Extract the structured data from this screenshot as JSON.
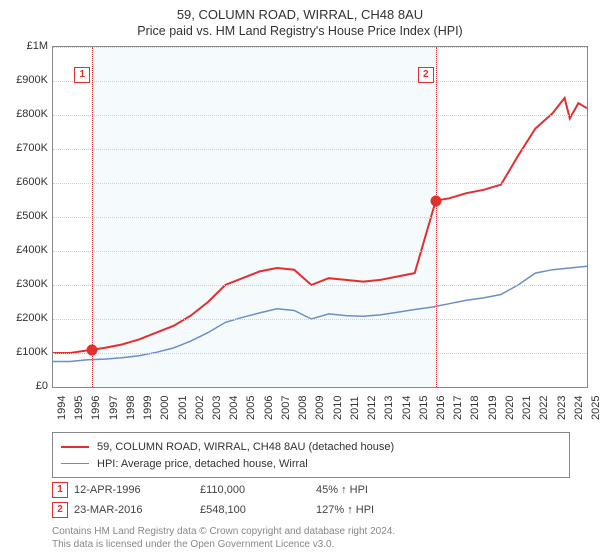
{
  "title": "59, COLUMN ROAD, WIRRAL, CH48 8AU",
  "subtitle": "Price paid vs. HM Land Registry's House Price Index (HPI)",
  "chart": {
    "type": "line",
    "background_color": "#ffffff",
    "shade_color": "#f5fafd",
    "grid_color": "#d0d0d0",
    "x_years": [
      1994,
      1995,
      1996,
      1997,
      1998,
      1999,
      2000,
      2001,
      2002,
      2003,
      2004,
      2005,
      2006,
      2007,
      2008,
      2009,
      2010,
      2011,
      2012,
      2013,
      2014,
      2015,
      2016,
      2017,
      2018,
      2019,
      2020,
      2021,
      2022,
      2023,
      2024,
      2025
    ],
    "y_ticks": [
      0,
      100000,
      200000,
      300000,
      400000,
      500000,
      600000,
      700000,
      800000,
      900000,
      1000000
    ],
    "y_tick_labels": [
      "£0",
      "£100K",
      "£200K",
      "£300K",
      "£400K",
      "£500K",
      "£600K",
      "£700K",
      "£800K",
      "£900K",
      "£1M"
    ],
    "ylim": [
      0,
      1000000
    ],
    "xlim": [
      1994,
      2025
    ],
    "label_fontsize": 11,
    "series": [
      {
        "name": "property",
        "label": "59, COLUMN ROAD, WIRRAL, CH48 8AU (detached house)",
        "color": "#e03030",
        "line_width": 2,
        "data": [
          [
            1994,
            100000
          ],
          [
            1995,
            100000
          ],
          [
            1996.28,
            110000
          ],
          [
            1997,
            115000
          ],
          [
            1998,
            125000
          ],
          [
            1999,
            140000
          ],
          [
            2000,
            160000
          ],
          [
            2001,
            180000
          ],
          [
            2002,
            210000
          ],
          [
            2003,
            250000
          ],
          [
            2004,
            300000
          ],
          [
            2005,
            320000
          ],
          [
            2006,
            340000
          ],
          [
            2007,
            350000
          ],
          [
            2008,
            345000
          ],
          [
            2009,
            300000
          ],
          [
            2010,
            320000
          ],
          [
            2011,
            315000
          ],
          [
            2012,
            310000
          ],
          [
            2013,
            315000
          ],
          [
            2014,
            325000
          ],
          [
            2015,
            335000
          ],
          [
            2016.22,
            548100
          ],
          [
            2017,
            555000
          ],
          [
            2018,
            570000
          ],
          [
            2019,
            580000
          ],
          [
            2020,
            595000
          ],
          [
            2021,
            680000
          ],
          [
            2022,
            760000
          ],
          [
            2023,
            805000
          ],
          [
            2023.7,
            850000
          ],
          [
            2024,
            790000
          ],
          [
            2024.5,
            835000
          ],
          [
            2025,
            820000
          ]
        ]
      },
      {
        "name": "hpi",
        "label": "HPI: Average price, detached house, Wirral",
        "color": "#6a8fc8",
        "line_width": 1.5,
        "data": [
          [
            1994,
            75000
          ],
          [
            1995,
            75000
          ],
          [
            1996,
            80000
          ],
          [
            1997,
            82000
          ],
          [
            1998,
            86000
          ],
          [
            1999,
            92000
          ],
          [
            2000,
            102000
          ],
          [
            2001,
            115000
          ],
          [
            2002,
            135000
          ],
          [
            2003,
            160000
          ],
          [
            2004,
            190000
          ],
          [
            2005,
            205000
          ],
          [
            2006,
            218000
          ],
          [
            2007,
            230000
          ],
          [
            2008,
            225000
          ],
          [
            2009,
            200000
          ],
          [
            2010,
            215000
          ],
          [
            2011,
            210000
          ],
          [
            2012,
            208000
          ],
          [
            2013,
            212000
          ],
          [
            2014,
            220000
          ],
          [
            2015,
            228000
          ],
          [
            2016,
            235000
          ],
          [
            2017,
            245000
          ],
          [
            2018,
            255000
          ],
          [
            2019,
            262000
          ],
          [
            2020,
            272000
          ],
          [
            2021,
            300000
          ],
          [
            2022,
            335000
          ],
          [
            2023,
            345000
          ],
          [
            2024,
            350000
          ],
          [
            2025,
            355000
          ]
        ]
      }
    ],
    "sale_markers": [
      {
        "n": "1",
        "year": 1996.28,
        "value": 110000
      },
      {
        "n": "2",
        "year": 2016.22,
        "value": 548100
      }
    ],
    "shade_ranges": [
      {
        "from": 1996.28,
        "to": 2016.22
      }
    ]
  },
  "events": [
    {
      "n": "1",
      "date": "12-APR-1996",
      "price": "£110,000",
      "delta": "45% ↑ HPI"
    },
    {
      "n": "2",
      "date": "23-MAR-2016",
      "price": "£548,100",
      "delta": "127% ↑ HPI"
    }
  ],
  "attribution": {
    "line1": "Contains HM Land Registry data © Crown copyright and database right 2024.",
    "line2": "This data is licensed under the Open Government Licence v3.0."
  }
}
